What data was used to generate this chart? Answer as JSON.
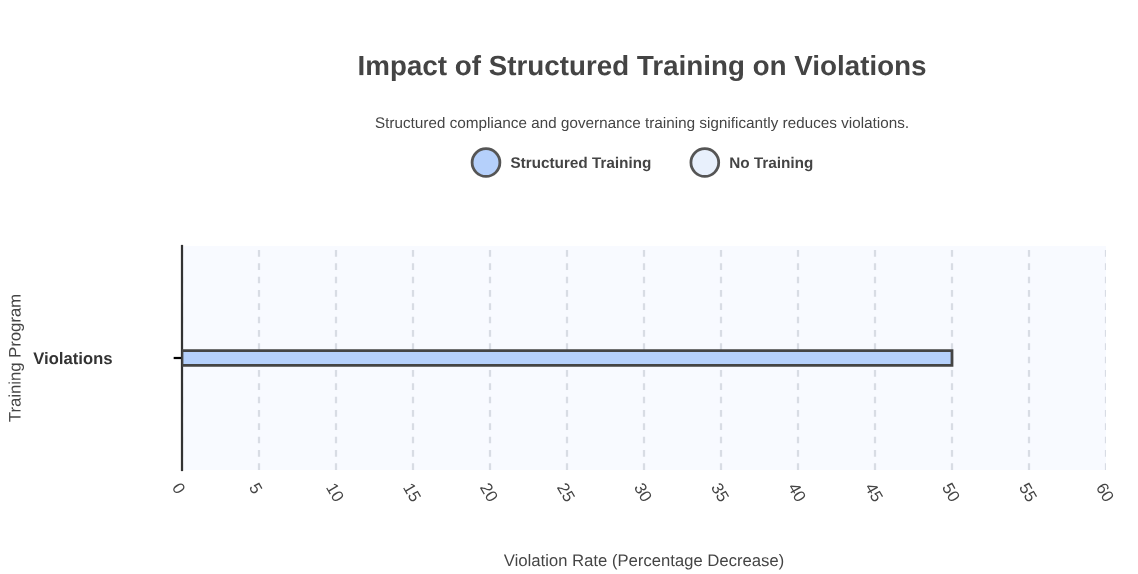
{
  "chart_data": {
    "type": "bar",
    "orientation": "horizontal",
    "title": "Impact of Structured Training on Violations",
    "subtitle": "Structured compliance and governance training significantly reduces violations.",
    "xlabel": "Violation Rate (Percentage Decrease)",
    "ylabel": "Training Program",
    "categories": [
      "Violations"
    ],
    "series": [
      {
        "name": "Structured Training",
        "color": "#b5d0fb",
        "values": [
          50
        ]
      },
      {
        "name": "No Training",
        "color": "#e8f0fc",
        "values": [
          null
        ]
      }
    ],
    "xlim": [
      0,
      60
    ],
    "xticks": [
      0,
      5,
      10,
      15,
      20,
      25,
      30,
      35,
      40,
      45,
      50,
      55,
      60
    ],
    "grid": "x",
    "legend": "top"
  }
}
